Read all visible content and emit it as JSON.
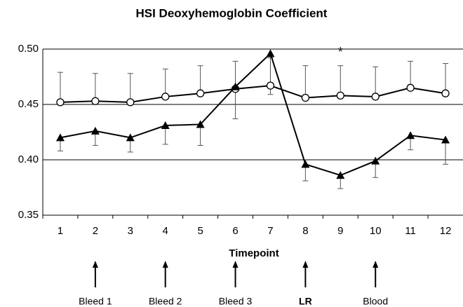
{
  "chart_data": {
    "type": "line",
    "title": "HSI Deoxyhemoglobin Coefficient",
    "x_label": "Timepoint",
    "categories": [
      "1",
      "2",
      "3",
      "4",
      "5",
      "6",
      "7",
      "8",
      "9",
      "10",
      "11",
      "12"
    ],
    "series": [
      {
        "marker": "circle",
        "color": "#000000",
        "error_direction": "up",
        "values": [
          0.452,
          0.453,
          0.452,
          0.457,
          0.46,
          0.464,
          0.467,
          0.456,
          0.458,
          0.457,
          0.465,
          0.46
        ],
        "errors": [
          0.027,
          0.025,
          0.026,
          0.025,
          0.025,
          0.025,
          0.025,
          0.029,
          0.027,
          0.027,
          0.024,
          0.027
        ]
      },
      {
        "marker": "triangle",
        "color": "#000000",
        "error_direction": "down",
        "values": [
          0.42,
          0.426,
          0.42,
          0.431,
          0.432,
          0.466,
          0.496,
          0.396,
          0.386,
          0.399,
          0.422,
          0.418
        ],
        "errors": [
          0.012,
          0.013,
          0.013,
          0.017,
          0.019,
          0.029,
          0.037,
          0.015,
          0.012,
          0.015,
          0.013,
          0.022
        ]
      }
    ],
    "ylim": [
      0.35,
      0.5
    ],
    "yticks": [
      {
        "value": 0.35,
        "label": "0.35"
      },
      {
        "value": 0.4,
        "label": "0.40"
      },
      {
        "value": 0.45,
        "label": "0.45"
      },
      {
        "value": 0.5,
        "label": "0.50"
      }
    ],
    "grid": true,
    "annotations": [
      {
        "text": "*",
        "category": "9"
      }
    ],
    "events": [
      {
        "label": "Bleed 1",
        "category": "2",
        "bold": false
      },
      {
        "label": "Bleed 2",
        "category": "4",
        "bold": false
      },
      {
        "label": "Bleed 3",
        "category": "6",
        "bold": false
      },
      {
        "label": "LR",
        "category": "8",
        "bold": true
      },
      {
        "label": "Blood",
        "category": "10",
        "bold": false
      }
    ]
  }
}
